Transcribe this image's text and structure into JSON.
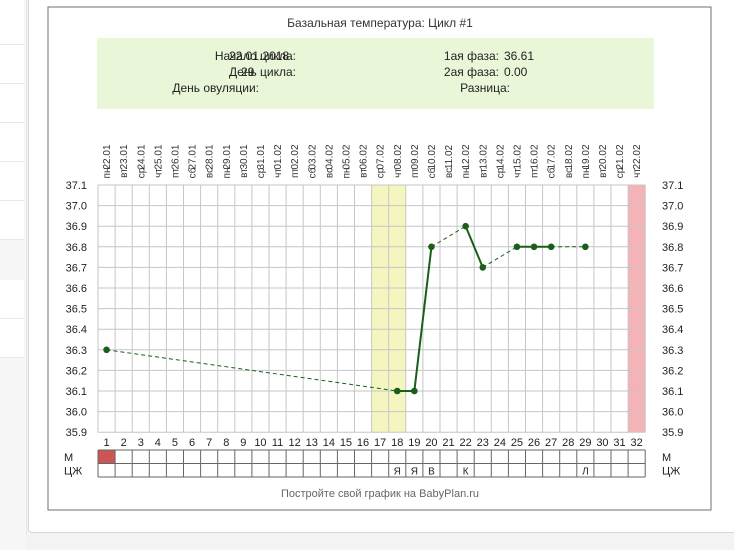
{
  "chart_data": {
    "type": "line",
    "title": "Базальная температура: Цикл #1",
    "info": {
      "cycle_start_label": "Начало цикла:",
      "cycle_start_value": "22.01.2018",
      "cycle_day_label": "День цикла:",
      "cycle_day_value": "29",
      "ovulation_day_label": "День овуляции:",
      "ovulation_day_value": "",
      "phase1_label": "1ая фаза:",
      "phase1_value": "36.61",
      "phase2_label": "2ая фаза:",
      "phase2_value": "0.00",
      "difference_label": "Разница:",
      "difference_value": ""
    },
    "dates": [
      "22.01",
      "23.01",
      "24.01",
      "25.01",
      "26.01",
      "27.01",
      "28.01",
      "29.01",
      "30.01",
      "31.01",
      "01.02",
      "02.02",
      "03.02",
      "04.02",
      "05.02",
      "06.02",
      "07.02",
      "08.02",
      "09.02",
      "10.02",
      "11.02",
      "12.02",
      "13.02",
      "14.02",
      "15.02",
      "16.02",
      "17.02",
      "18.02",
      "19.02",
      "20.02",
      "21.02",
      "22.02"
    ],
    "weekdays": [
      "пн",
      "вт",
      "ср",
      "чт",
      "пт",
      "сб",
      "вс",
      "пн",
      "вт",
      "ср",
      "чт",
      "пт",
      "сб",
      "вс",
      "пн",
      "вт",
      "ср",
      "чт",
      "пт",
      "сб",
      "вс",
      "пн",
      "вт",
      "ср",
      "чт",
      "пт",
      "сб",
      "вс",
      "пн",
      "вт",
      "ср",
      "чт"
    ],
    "days": [
      "1",
      "2",
      "3",
      "4",
      "5",
      "6",
      "7",
      "8",
      "9",
      "10",
      "11",
      "12",
      "13",
      "14",
      "15",
      "16",
      "17",
      "18",
      "19",
      "20",
      "21",
      "22",
      "23",
      "24",
      "25",
      "26",
      "27",
      "28",
      "29",
      "30",
      "31",
      "32"
    ],
    "y_ticks": [
      "37.1",
      "37.0",
      "36.9",
      "36.8",
      "36.7",
      "36.6",
      "36.5",
      "36.4",
      "36.3",
      "36.2",
      "36.1",
      "36.0",
      "35.9"
    ],
    "ylim": [
      35.9,
      37.1
    ],
    "points": [
      {
        "day": 1,
        "temp": 36.3
      },
      {
        "day": 18,
        "temp": 36.1
      },
      {
        "day": 19,
        "temp": 36.1
      },
      {
        "day": 20,
        "temp": 36.8
      },
      {
        "day": 22,
        "temp": 36.9
      },
      {
        "day": 23,
        "temp": 36.7
      },
      {
        "day": 25,
        "temp": 36.8
      },
      {
        "day": 26,
        "temp": 36.8
      },
      {
        "day": 27,
        "temp": 36.8
      },
      {
        "day": 29,
        "temp": 36.8
      }
    ],
    "highlight_days": [
      17,
      18
    ],
    "current_day": 32,
    "menstruation_days": [
      1
    ],
    "row_m_label": "М",
    "row_cm_label": "ЦЖ",
    "cm_marks": [
      {
        "day": 18,
        "mark": "Я"
      },
      {
        "day": 19,
        "mark": "Я"
      },
      {
        "day": 20,
        "mark": "В"
      },
      {
        "day": 22,
        "mark": "К"
      },
      {
        "day": 29,
        "mark": "Л"
      }
    ],
    "footer": "Постройте свой график на BabyPlan.ru",
    "colors": {
      "line": "#1a5e1a",
      "info_bg": "#eaf6d8",
      "highlight": "#f5f5bf",
      "current_day": "#f4b3b6",
      "menstruation": "#cc5555",
      "grid": "#c6c6c6"
    }
  }
}
